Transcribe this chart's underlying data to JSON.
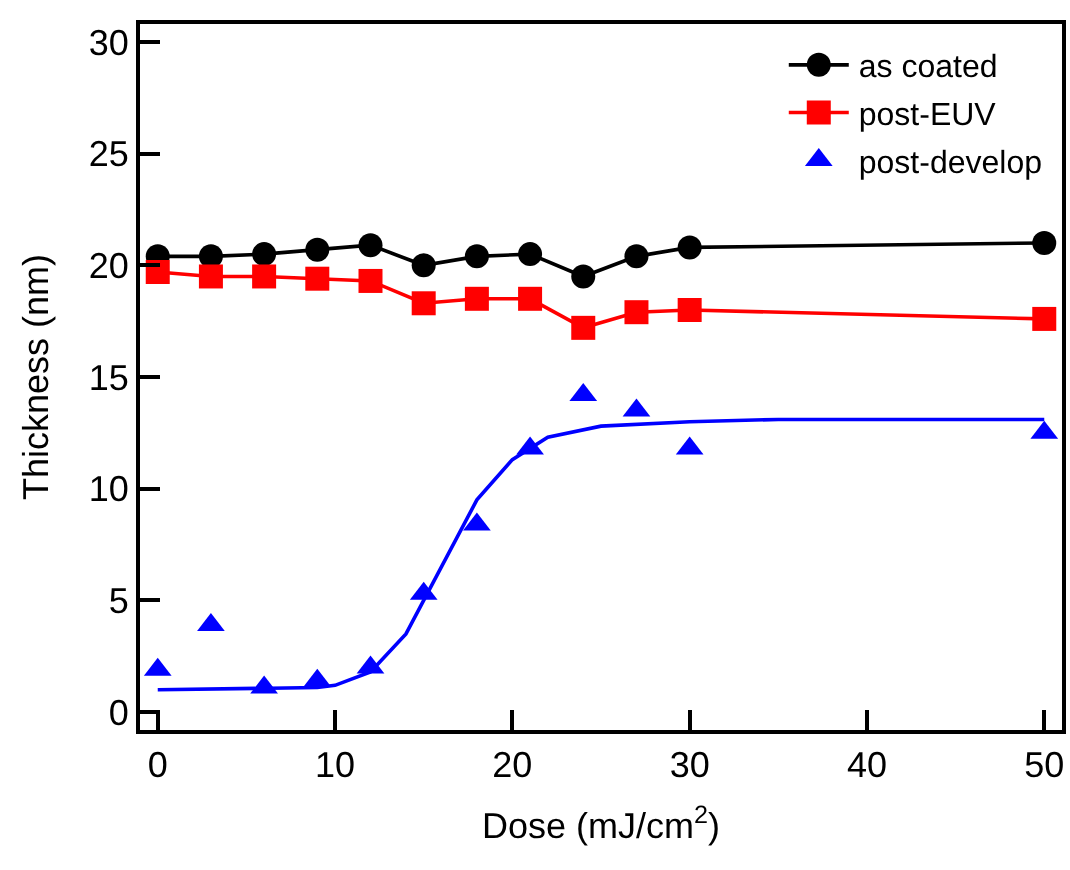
{
  "chart_data": {
    "type": "line",
    "xlabel": "Dose (mJ/cm$^{2}$)",
    "ylabel": "Thickness (nm)",
    "xlim": [
      -1,
      51
    ],
    "xticks": [
      0,
      10,
      20,
      30,
      40,
      50
    ],
    "ylim": [
      -0.8,
      30.8
    ],
    "yticks": [
      0,
      5,
      10,
      15,
      20,
      25,
      30
    ],
    "grid": false,
    "legend": "top right",
    "x": [
      0,
      3,
      6,
      9,
      12,
      15,
      18,
      21,
      24,
      27,
      30,
      50
    ],
    "series": [
      {
        "name": "as coated",
        "color": "#000000",
        "marker": "circle",
        "values": [
          20.4,
          20.4,
          20.5,
          20.7,
          20.9,
          20.0,
          20.4,
          20.5,
          19.5,
          20.4,
          20.8,
          21.0
        ]
      },
      {
        "name": "post-EUV",
        "color": "#ff0000",
        "marker": "square",
        "values": [
          19.7,
          19.5,
          19.5,
          19.4,
          19.3,
          18.3,
          18.5,
          18.5,
          17.2,
          17.9,
          18.0,
          17.6
        ]
      },
      {
        "name": "post-develop",
        "color": "#0000ff",
        "type": "scatter",
        "marker": "triangle",
        "values": [
          1.9,
          3.9,
          1.1,
          1.4,
          2.0,
          5.3,
          8.4,
          11.8,
          14.2,
          13.5,
          11.8,
          12.5
        ]
      },
      {
        "color": "#0000ff",
        "marker": "none",
        "x": [
          0,
          9,
          10,
          12,
          14,
          16,
          18,
          20,
          22,
          25,
          30,
          35,
          50
        ],
        "values": [
          1.0,
          1.1,
          1.2,
          1.8,
          3.5,
          6.5,
          9.5,
          11.3,
          12.3,
          12.8,
          13.0,
          13.1,
          13.1
        ]
      }
    ]
  }
}
